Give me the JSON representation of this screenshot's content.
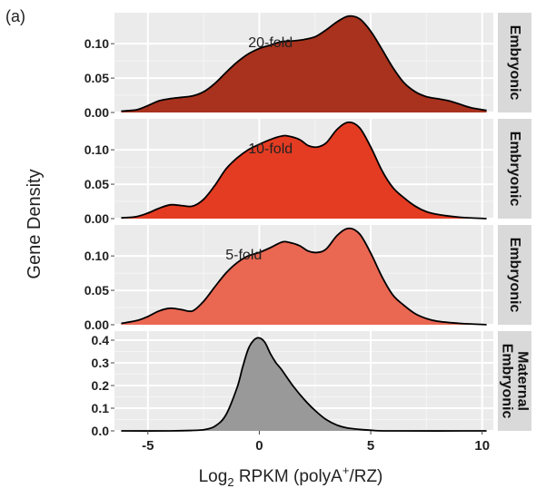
{
  "figure_label": "(a)",
  "chart_data": {
    "type": "area",
    "subtype": "density-facets",
    "xlabel": "Log",
    "xlabel_sub": "2",
    "xlabel_rest": " RPKM (polyA",
    "xlabel_sup": "+",
    "xlabel_end": "/RZ)",
    "ylabel": "Gene Density",
    "xlim": [
      -6.5,
      10.5
    ],
    "x_ticks": [
      -5,
      0,
      5,
      10
    ],
    "x_tick_labels": [
      "-5",
      "0",
      "5",
      "10"
    ],
    "grid": true,
    "panels": [
      {
        "strip_lines": [
          "Embryonic"
        ],
        "annotation": "20-fold",
        "fill": "#a8321d",
        "ylim": [
          0,
          0.145
        ],
        "y_ticks": [
          0,
          0.05,
          0.1
        ],
        "y_tick_labels": [
          "0.00",
          "0.05",
          "0.10"
        ],
        "x": [
          -6.2,
          -5.5,
          -5,
          -4.5,
          -4,
          -3.5,
          -3,
          -2.5,
          -2,
          -1.5,
          -1,
          -0.5,
          0,
          0.5,
          1,
          1.5,
          2,
          2.5,
          3,
          3.5,
          4,
          4.5,
          5,
          5.5,
          6,
          6.5,
          7,
          7.5,
          8,
          8.5,
          9,
          9.5,
          10.2
        ],
        "y": [
          0.002,
          0.004,
          0.01,
          0.017,
          0.02,
          0.022,
          0.024,
          0.03,
          0.042,
          0.058,
          0.073,
          0.085,
          0.093,
          0.098,
          0.103,
          0.104,
          0.106,
          0.11,
          0.12,
          0.132,
          0.14,
          0.136,
          0.118,
          0.092,
          0.065,
          0.043,
          0.03,
          0.023,
          0.02,
          0.017,
          0.012,
          0.007,
          0.003
        ]
      },
      {
        "strip_lines": [
          "Embryonic"
        ],
        "annotation": "10-fold",
        "fill": "#e43c22",
        "ylim": [
          0,
          0.145
        ],
        "y_ticks": [
          0,
          0.05,
          0.1
        ],
        "y_tick_labels": [
          "0.00",
          "0.05",
          "0.10"
        ],
        "x": [
          -6.2,
          -5.5,
          -5,
          -4.5,
          -4,
          -3.5,
          -3,
          -2.5,
          -2,
          -1.5,
          -1,
          -0.5,
          0,
          0.5,
          1,
          1.3,
          1.8,
          2.2,
          2.6,
          3,
          3.5,
          4,
          4.5,
          5,
          5.5,
          6,
          6.5,
          7,
          7.5,
          8,
          9,
          10.2
        ],
        "y": [
          0.001,
          0.003,
          0.008,
          0.015,
          0.02,
          0.019,
          0.018,
          0.028,
          0.048,
          0.072,
          0.088,
          0.1,
          0.108,
          0.115,
          0.12,
          0.12,
          0.115,
          0.106,
          0.104,
          0.11,
          0.13,
          0.14,
          0.132,
          0.104,
          0.07,
          0.045,
          0.03,
          0.018,
          0.01,
          0.006,
          0.002,
          0.0
        ]
      },
      {
        "strip_lines": [
          "Embryonic"
        ],
        "annotation": "5-fold",
        "fill": "#ea6752",
        "ylim": [
          0,
          0.145
        ],
        "y_ticks": [
          0,
          0.05,
          0.1
        ],
        "y_tick_labels": [
          "0.00",
          "0.05",
          "0.10"
        ],
        "x": [
          -6.2,
          -5.5,
          -5,
          -4.5,
          -4,
          -3.5,
          -3,
          -2.5,
          -2,
          -1.5,
          -1,
          -0.5,
          0,
          0.5,
          1,
          1.3,
          1.8,
          2.2,
          2.6,
          3,
          3.5,
          4,
          4.5,
          5,
          5.5,
          6,
          6.5,
          7,
          7.5,
          8,
          9,
          10.2
        ],
        "y": [
          0.002,
          0.006,
          0.012,
          0.02,
          0.024,
          0.022,
          0.02,
          0.034,
          0.055,
          0.075,
          0.09,
          0.1,
          0.105,
          0.112,
          0.12,
          0.12,
          0.115,
          0.107,
          0.105,
          0.11,
          0.13,
          0.14,
          0.132,
          0.104,
          0.07,
          0.043,
          0.028,
          0.016,
          0.009,
          0.005,
          0.002,
          0.0
        ]
      },
      {
        "strip_lines": [
          "Maternal",
          "Embryonic"
        ],
        "annotation": "",
        "fill": "#999999",
        "ylim": [
          0,
          0.44
        ],
        "y_ticks": [
          0,
          0.1,
          0.2,
          0.3,
          0.4
        ],
        "y_tick_labels": [
          "0.0",
          "0.1",
          "0.2",
          "0.3",
          "0.4"
        ],
        "x": [
          -6.2,
          -4,
          -3,
          -2.5,
          -2,
          -1.5,
          -1,
          -0.75,
          -0.5,
          -0.25,
          0,
          0.25,
          0.5,
          0.75,
          1,
          1.5,
          2,
          2.5,
          3,
          3.5,
          4,
          5,
          6,
          10.2
        ],
        "y": [
          0.0,
          0.0,
          0.002,
          0.005,
          0.02,
          0.07,
          0.19,
          0.28,
          0.36,
          0.4,
          0.41,
          0.39,
          0.34,
          0.3,
          0.27,
          0.2,
          0.14,
          0.09,
          0.05,
          0.025,
          0.012,
          0.003,
          0.0,
          0.0
        ]
      }
    ]
  }
}
